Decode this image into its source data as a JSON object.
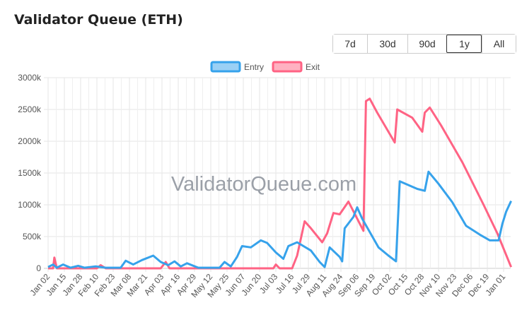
{
  "title": "Validator Queue (ETH)",
  "range_buttons": [
    {
      "label": "7d",
      "active": false
    },
    {
      "label": "30d",
      "active": false
    },
    {
      "label": "90d",
      "active": false
    },
    {
      "label": "1y",
      "active": true
    },
    {
      "label": "All",
      "active": false
    }
  ],
  "watermark": "ValidatorQueue.com",
  "chart_data": {
    "type": "line",
    "title": "",
    "xlabel": "",
    "ylabel": "",
    "ylim": [
      0,
      3000
    ],
    "y_unit_suffix": "k",
    "y_ticks": [
      "0",
      "500k",
      "1000k",
      "1500k",
      "2000k",
      "2500k",
      "3000k"
    ],
    "x_ticks": [
      "Jan 02",
      "Jan 15",
      "Jan 28",
      "Feb 10",
      "Feb 23",
      "Mar 08",
      "Mar 21",
      "Apr 03",
      "Apr 16",
      "Apr 29",
      "May 12",
      "May 25",
      "Jun 07",
      "Jun 20",
      "Jul 03",
      "Jul 16",
      "Jul 29",
      "Aug 11",
      "Aug 24",
      "Sep 06",
      "Sep 19",
      "Oct 02",
      "Oct 15",
      "Oct 28",
      "Nov 10",
      "Nov 23",
      "Dec 06",
      "Dec 19",
      "Jan 01"
    ],
    "grid": true,
    "legend_position": "top-center",
    "series": [
      {
        "name": "Entry",
        "color": "#36a2eb",
        "fill": "#9ad0f5",
        "points": [
          [
            "Jan 02",
            20
          ],
          [
            "Jan 06",
            60
          ],
          [
            "Jan 09",
            10
          ],
          [
            "Jan 14",
            60
          ],
          [
            "Jan 20",
            10
          ],
          [
            "Jan 26",
            40
          ],
          [
            "Jan 31",
            10
          ],
          [
            "Feb 09",
            30
          ],
          [
            "Feb 17",
            10
          ],
          [
            "Mar 01",
            10
          ],
          [
            "Mar 05",
            120
          ],
          [
            "Mar 11",
            60
          ],
          [
            "Mar 18",
            130
          ],
          [
            "Mar 27",
            200
          ],
          [
            "Apr 02",
            100
          ],
          [
            "Apr 08",
            50
          ],
          [
            "Apr 13",
            110
          ],
          [
            "Apr 18",
            30
          ],
          [
            "Apr 23",
            80
          ],
          [
            "May 02",
            10
          ],
          [
            "May 19",
            10
          ],
          [
            "May 23",
            100
          ],
          [
            "May 28",
            30
          ],
          [
            "Jun 02",
            180
          ],
          [
            "Jun 06",
            350
          ],
          [
            "Jun 13",
            330
          ],
          [
            "Jun 21",
            440
          ],
          [
            "Jun 26",
            400
          ],
          [
            "Jul 03",
            250
          ],
          [
            "Jul 09",
            150
          ],
          [
            "Jul 13",
            350
          ],
          [
            "Jul 20",
            410
          ],
          [
            "Jul 31",
            280
          ],
          [
            "Aug 07",
            100
          ],
          [
            "Aug 11",
            20
          ],
          [
            "Aug 15",
            330
          ],
          [
            "Aug 23",
            180
          ],
          [
            "Aug 25",
            110
          ],
          [
            "Aug 27",
            630
          ],
          [
            "Sep 03",
            810
          ],
          [
            "Sep 06",
            960
          ],
          [
            "Sep 10",
            780
          ],
          [
            "Sep 23",
            330
          ],
          [
            "Oct 01",
            200
          ],
          [
            "Oct 07",
            110
          ],
          [
            "Oct 10",
            1370
          ],
          [
            "Oct 24",
            1250
          ],
          [
            "Oct 30",
            1220
          ],
          [
            "Nov 02",
            1520
          ],
          [
            "Nov 10",
            1330
          ],
          [
            "Nov 21",
            1040
          ],
          [
            "Dec 02",
            670
          ],
          [
            "Dec 13",
            530
          ],
          [
            "Dec 21",
            440
          ],
          [
            "Dec 28",
            440
          ],
          [
            "Dec 31",
            700
          ],
          [
            "Jan 03",
            890
          ],
          [
            "Jan 07",
            1060
          ]
        ]
      },
      {
        "name": "Exit",
        "color": "#ff6384",
        "fill": "#ffb1c1",
        "points": [
          [
            "Jan 02",
            0
          ],
          [
            "Jan 06",
            0
          ],
          [
            "Jan 07",
            170
          ],
          [
            "Jan 09",
            0
          ],
          [
            "Feb 10",
            0
          ],
          [
            "Feb 13",
            50
          ],
          [
            "Feb 17",
            0
          ],
          [
            "Apr 02",
            0
          ],
          [
            "Apr 06",
            100
          ],
          [
            "Apr 09",
            0
          ],
          [
            "Jul 01",
            0
          ],
          [
            "Jul 03",
            60
          ],
          [
            "Jul 06",
            0
          ],
          [
            "Jul 16",
            0
          ],
          [
            "Jul 20",
            200
          ],
          [
            "Jul 26",
            740
          ],
          [
            "Jul 31",
            630
          ],
          [
            "Aug 09",
            410
          ],
          [
            "Aug 13",
            550
          ],
          [
            "Aug 18",
            870
          ],
          [
            "Aug 23",
            850
          ],
          [
            "Aug 30",
            1050
          ],
          [
            "Sep 11",
            590
          ],
          [
            "Sep 13",
            2630
          ],
          [
            "Sep 16",
            2670
          ],
          [
            "Sep 22",
            2450
          ],
          [
            "Oct 06",
            1980
          ],
          [
            "Oct 08",
            2500
          ],
          [
            "Oct 20",
            2370
          ],
          [
            "Oct 28",
            2150
          ],
          [
            "Oct 30",
            2450
          ],
          [
            "Nov 03",
            2530
          ],
          [
            "Nov 12",
            2250
          ],
          [
            "Nov 29",
            1670
          ],
          [
            "Dec 16",
            1000
          ],
          [
            "Dec 27",
            550
          ],
          [
            "Jan 07",
            20
          ]
        ]
      }
    ]
  }
}
